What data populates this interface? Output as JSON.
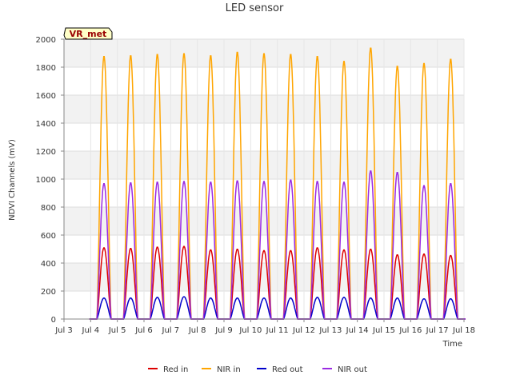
{
  "chart_data": {
    "type": "line",
    "title": "LED sensor",
    "xlabel": "Time",
    "ylabel": "NDVI Channels (mV)",
    "annotation": "VR_met",
    "ylim": [
      0,
      2000
    ],
    "yticks": [
      0,
      200,
      400,
      600,
      800,
      1000,
      1200,
      1400,
      1600,
      1800,
      2000
    ],
    "xlim": [
      3,
      18
    ],
    "xticks": [
      {
        "day": 3,
        "label": "Jul 3"
      },
      {
        "day": 4,
        "label": "Jul 4"
      },
      {
        "day": 5,
        "label": "Jul 5"
      },
      {
        "day": 6,
        "label": "Jul 6"
      },
      {
        "day": 7,
        "label": "Jul 7"
      },
      {
        "day": 8,
        "label": "Jul 8"
      },
      {
        "day": 9,
        "label": "Jul 9"
      },
      {
        "day": 10,
        "label": "Jul 10"
      },
      {
        "day": 11,
        "label": "Jul 11"
      },
      {
        "day": 12,
        "label": "Jul 12"
      },
      {
        "day": 13,
        "label": "Jul 13"
      },
      {
        "day": 14,
        "label": "Jul 14"
      },
      {
        "day": 15,
        "label": "Jul 15"
      },
      {
        "day": 16,
        "label": "Jul 16"
      },
      {
        "day": 17,
        "label": "Jul 17"
      },
      {
        "day": 18,
        "label": "Jul 18"
      }
    ],
    "grid": true,
    "legend_position": "bottom",
    "peak_days": [
      4.5,
      5.5,
      6.5,
      7.5,
      8.5,
      9.5,
      10.5,
      11.5,
      12.5,
      13.5,
      14.5,
      15.5,
      16.5,
      17.5
    ],
    "series": [
      {
        "name": "Red in",
        "color": "#dd0000",
        "peaks": [
          510,
          505,
          515,
          520,
          495,
          500,
          490,
          490,
          510,
          495,
          500,
          460,
          465,
          455
        ]
      },
      {
        "name": "NIR in",
        "color": "#ffa500",
        "peaks": [
          1880,
          1885,
          1895,
          1900,
          1885,
          1910,
          1900,
          1895,
          1880,
          1845,
          1940,
          1810,
          1830,
          1860
        ]
      },
      {
        "name": "Red out",
        "color": "#0000cc",
        "peaks": [
          150,
          150,
          155,
          160,
          150,
          150,
          150,
          150,
          155,
          155,
          150,
          150,
          145,
          145
        ]
      },
      {
        "name": "NIR out",
        "color": "#9a2be2",
        "peaks": [
          970,
          975,
          980,
          985,
          980,
          990,
          985,
          995,
          985,
          980,
          1060,
          1050,
          955,
          970
        ]
      }
    ]
  }
}
